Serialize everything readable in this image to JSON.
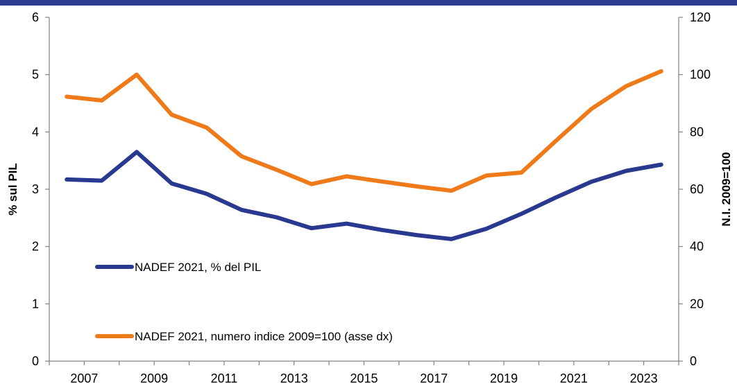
{
  "colors": {
    "top_bar": "#2e3d8f",
    "series_pil": "#2a3990",
    "series_index": "#ef7a1a",
    "axis": "#808080"
  },
  "chart_data": {
    "type": "line",
    "x": [
      2006.5,
      2007.5,
      2008.5,
      2009.5,
      2010.5,
      2011.5,
      2012.5,
      2013.5,
      2014.5,
      2015.5,
      2016.5,
      2017.5,
      2018.5,
      2019.5,
      2020.5,
      2021.5,
      2022.5,
      2023.5
    ],
    "x_ticks": [
      "2007",
      "2009",
      "2011",
      "2013",
      "2015",
      "2017",
      "2019",
      "2021",
      "2023"
    ],
    "y_left": {
      "label": "% sul PIL",
      "range": [
        0,
        6
      ],
      "ticks": [
        "0",
        "1",
        "2",
        "3",
        "4",
        "5",
        "6"
      ]
    },
    "y_right": {
      "label": "N.I. 2009=100",
      "range": [
        0,
        120
      ],
      "ticks": [
        "0",
        "20",
        "40",
        "60",
        "80",
        "100",
        "120"
      ]
    },
    "series": [
      {
        "name": "NADEF 2021, % del PIL",
        "axis": "left",
        "values": [
          3.17,
          3.15,
          3.65,
          3.1,
          2.92,
          2.64,
          2.51,
          2.32,
          2.4,
          2.29,
          2.2,
          2.13,
          2.31,
          2.57,
          2.86,
          3.13,
          3.32,
          3.43
        ]
      },
      {
        "name": "NADEF 2021, numero indice 2009=100 (asse dx)",
        "axis": "right",
        "values": [
          92.3,
          91.0,
          100.0,
          86.0,
          81.5,
          71.5,
          66.8,
          61.8,
          64.5,
          62.7,
          61.0,
          59.5,
          64.8,
          65.8,
          77.0,
          88.0,
          96.0,
          101.2
        ]
      }
    ],
    "grid": false,
    "legend_position": "lower-left, inside plot"
  }
}
